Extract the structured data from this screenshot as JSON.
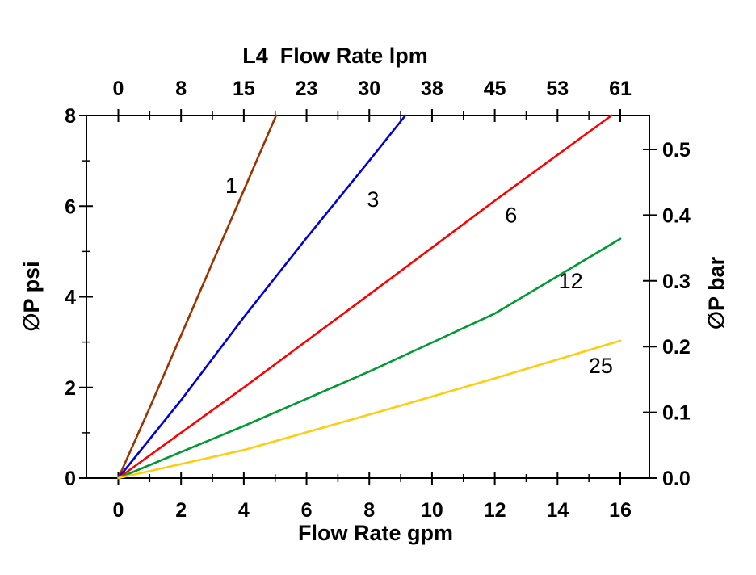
{
  "chart_data": {
    "type": "line",
    "title_top": "L4  Flow Rate lpm",
    "xlabel_bottom": "Flow Rate gpm",
    "ylabel_left": "∅P psi",
    "ylabel_right": "∅P bar",
    "grid": false,
    "legend": "inline labels on curves",
    "axes": {
      "bottom": {
        "unit": "gpm",
        "major_ticks": [
          0,
          2,
          4,
          6,
          8,
          10,
          12,
          14,
          16
        ],
        "minor_ticks": [
          1,
          3,
          5,
          7,
          9,
          11,
          13,
          15
        ],
        "range_gpm": [
          -1.0,
          16.93
        ]
      },
      "top": {
        "unit": "lpm",
        "tick_positions_gpm": [
          0,
          2,
          4,
          6,
          8,
          10,
          12,
          14,
          16
        ],
        "tick_labels": [
          "0",
          "8",
          "15",
          "23",
          "30",
          "38",
          "45",
          "53",
          "61"
        ],
        "minor_ticks_gpm": [
          1,
          3,
          5,
          7,
          9,
          11,
          13,
          15
        ]
      },
      "left": {
        "unit": "psi",
        "major_ticks": [
          0,
          2,
          4,
          6,
          8
        ],
        "minor_ticks": [
          1,
          3,
          5,
          7
        ],
        "range_psi": [
          0,
          8
        ]
      },
      "right": {
        "unit": "bar",
        "major_tick_labels": [
          "0.0",
          "0.1",
          "0.2",
          "0.3",
          "0.4",
          "0.5"
        ],
        "major_tick_values_bar": [
          0.0,
          0.1,
          0.2,
          0.3,
          0.4,
          0.5
        ],
        "psi_per_bar": 14.5038
      }
    },
    "series": [
      {
        "label": "1",
        "color": "#993300",
        "points_gpm_psi": [
          [
            0,
            0
          ],
          [
            1,
            1.55
          ],
          [
            2,
            3.15
          ],
          [
            3,
            4.75
          ],
          [
            4,
            6.35
          ],
          [
            5.03,
            8
          ]
        ],
        "label_pos_gpm_psi": [
          3.6,
          6.45
        ]
      },
      {
        "label": "3",
        "color": "#0000DD",
        "points_gpm_psi": [
          [
            0,
            0
          ],
          [
            2,
            1.72
          ],
          [
            4,
            3.55
          ],
          [
            6,
            5.3
          ],
          [
            8,
            7.0
          ],
          [
            9.15,
            8
          ]
        ],
        "label_pos_gpm_psi": [
          8.12,
          6.15
        ]
      },
      {
        "label": "6",
        "color": "#FF0000",
        "points_gpm_psi": [
          [
            0,
            0
          ],
          [
            4,
            2.0
          ],
          [
            8,
            4.05
          ],
          [
            12,
            6.12
          ],
          [
            15.72,
            8
          ]
        ],
        "label_pos_gpm_psi": [
          12.52,
          5.8
        ]
      },
      {
        "label": "12",
        "color": "#009933",
        "points_gpm_psi": [
          [
            0,
            0
          ],
          [
            4,
            1.15
          ],
          [
            8,
            2.35
          ],
          [
            12,
            3.63
          ],
          [
            16,
            5.28
          ]
        ],
        "label_pos_gpm_psi": [
          14.42,
          4.35
        ]
      },
      {
        "label": "25",
        "color": "#FFCC11",
        "points_gpm_psi": [
          [
            0,
            0
          ],
          [
            4,
            0.62
          ],
          [
            8,
            1.4
          ],
          [
            12,
            2.2
          ],
          [
            16,
            3.03
          ]
        ],
        "label_pos_gpm_psi": [
          15.38,
          2.48
        ]
      }
    ]
  }
}
